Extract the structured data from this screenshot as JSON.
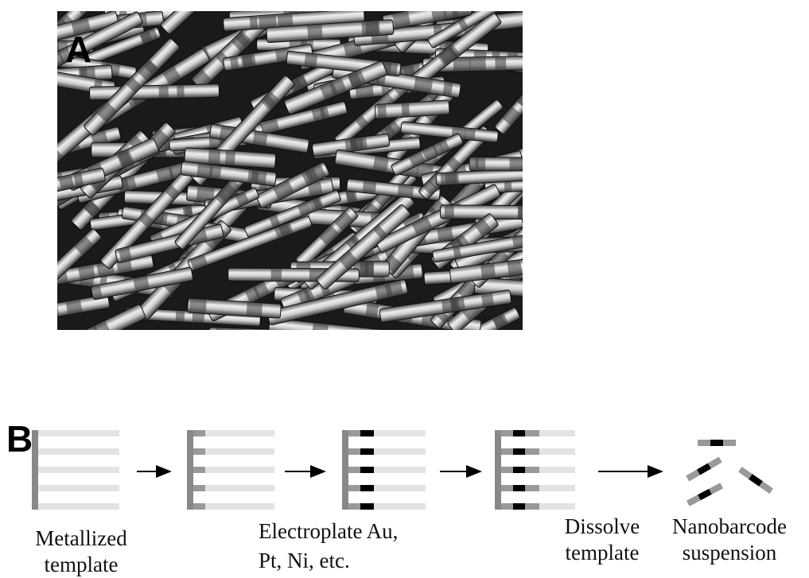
{
  "panels": {
    "a": {
      "label": "A"
    },
    "b": {
      "label": "B",
      "captions": [
        {
          "lines": [
            "Metallized",
            "template"
          ]
        },
        {
          "lines": [
            "Electroplate Au,",
            "Pt, Ni, etc."
          ]
        },
        {
          "lines": [
            "Dissolve",
            "template"
          ]
        },
        {
          "lines": [
            "Nanobarcode",
            "suspension"
          ]
        }
      ]
    }
  }
}
